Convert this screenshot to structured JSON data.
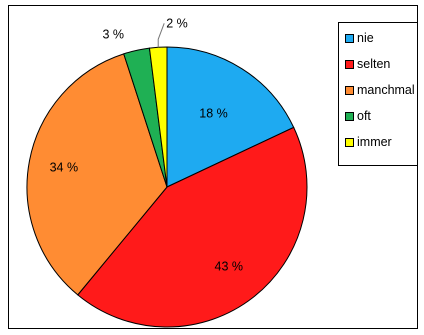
{
  "chart_data": {
    "type": "pie",
    "title": "",
    "slices": [
      {
        "label": "nie",
        "value": 18,
        "color": "#1EAAF1"
      },
      {
        "label": "selten",
        "value": 43,
        "color": "#FF1A1A"
      },
      {
        "label": "manchmal",
        "value": 34,
        "color": "#FF8C33"
      },
      {
        "label": "oft",
        "value": 3,
        "color": "#1FB054"
      },
      {
        "label": "immer",
        "value": 2,
        "color": "#FFFF00"
      }
    ],
    "data_labels": [
      "18 %",
      "43 %",
      "34 %",
      "3 %",
      "2 %"
    ],
    "legend": {
      "placement": "top-right",
      "entries": [
        "nie",
        "selten",
        "manchmal",
        "oft",
        "immer"
      ]
    }
  }
}
